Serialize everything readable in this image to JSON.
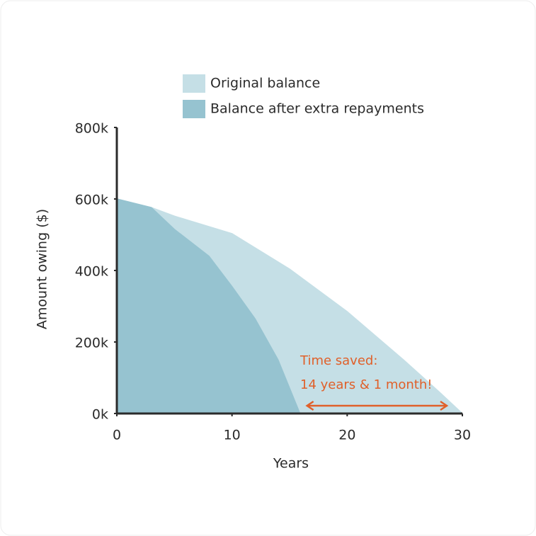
{
  "chart_data": {
    "type": "area",
    "xlabel": "Years",
    "ylabel": "Amount owing ($)",
    "xlim": [
      0,
      30
    ],
    "xticks": [
      0,
      10,
      20,
      30
    ],
    "ylim": [
      0,
      800
    ],
    "yticks": [
      {
        "value": 0,
        "label": "0k"
      },
      {
        "value": 200,
        "label": "200k"
      },
      {
        "value": 400,
        "label": "400k"
      },
      {
        "value": 600,
        "label": "600k"
      },
      {
        "value": 800,
        "label": "800k"
      }
    ],
    "series": [
      {
        "name": "Original balance",
        "color": "#c5dfe6",
        "x": [
          0,
          3,
          5,
          10,
          15,
          20,
          25,
          28,
          30
        ],
        "values": [
          600,
          576,
          552,
          503,
          404,
          285,
          147,
          60,
          0
        ]
      },
      {
        "name": "Balance after extra repayments",
        "color": "#96c3d0",
        "x": [
          0,
          3,
          5,
          8,
          10,
          12,
          14,
          15.9
        ],
        "values": [
          600,
          576,
          515,
          440,
          355,
          265,
          150,
          0
        ]
      }
    ],
    "annotation": {
      "lines": [
        "Time saved:",
        "14 years & 1 month!"
      ],
      "color": "#e0602a"
    }
  }
}
